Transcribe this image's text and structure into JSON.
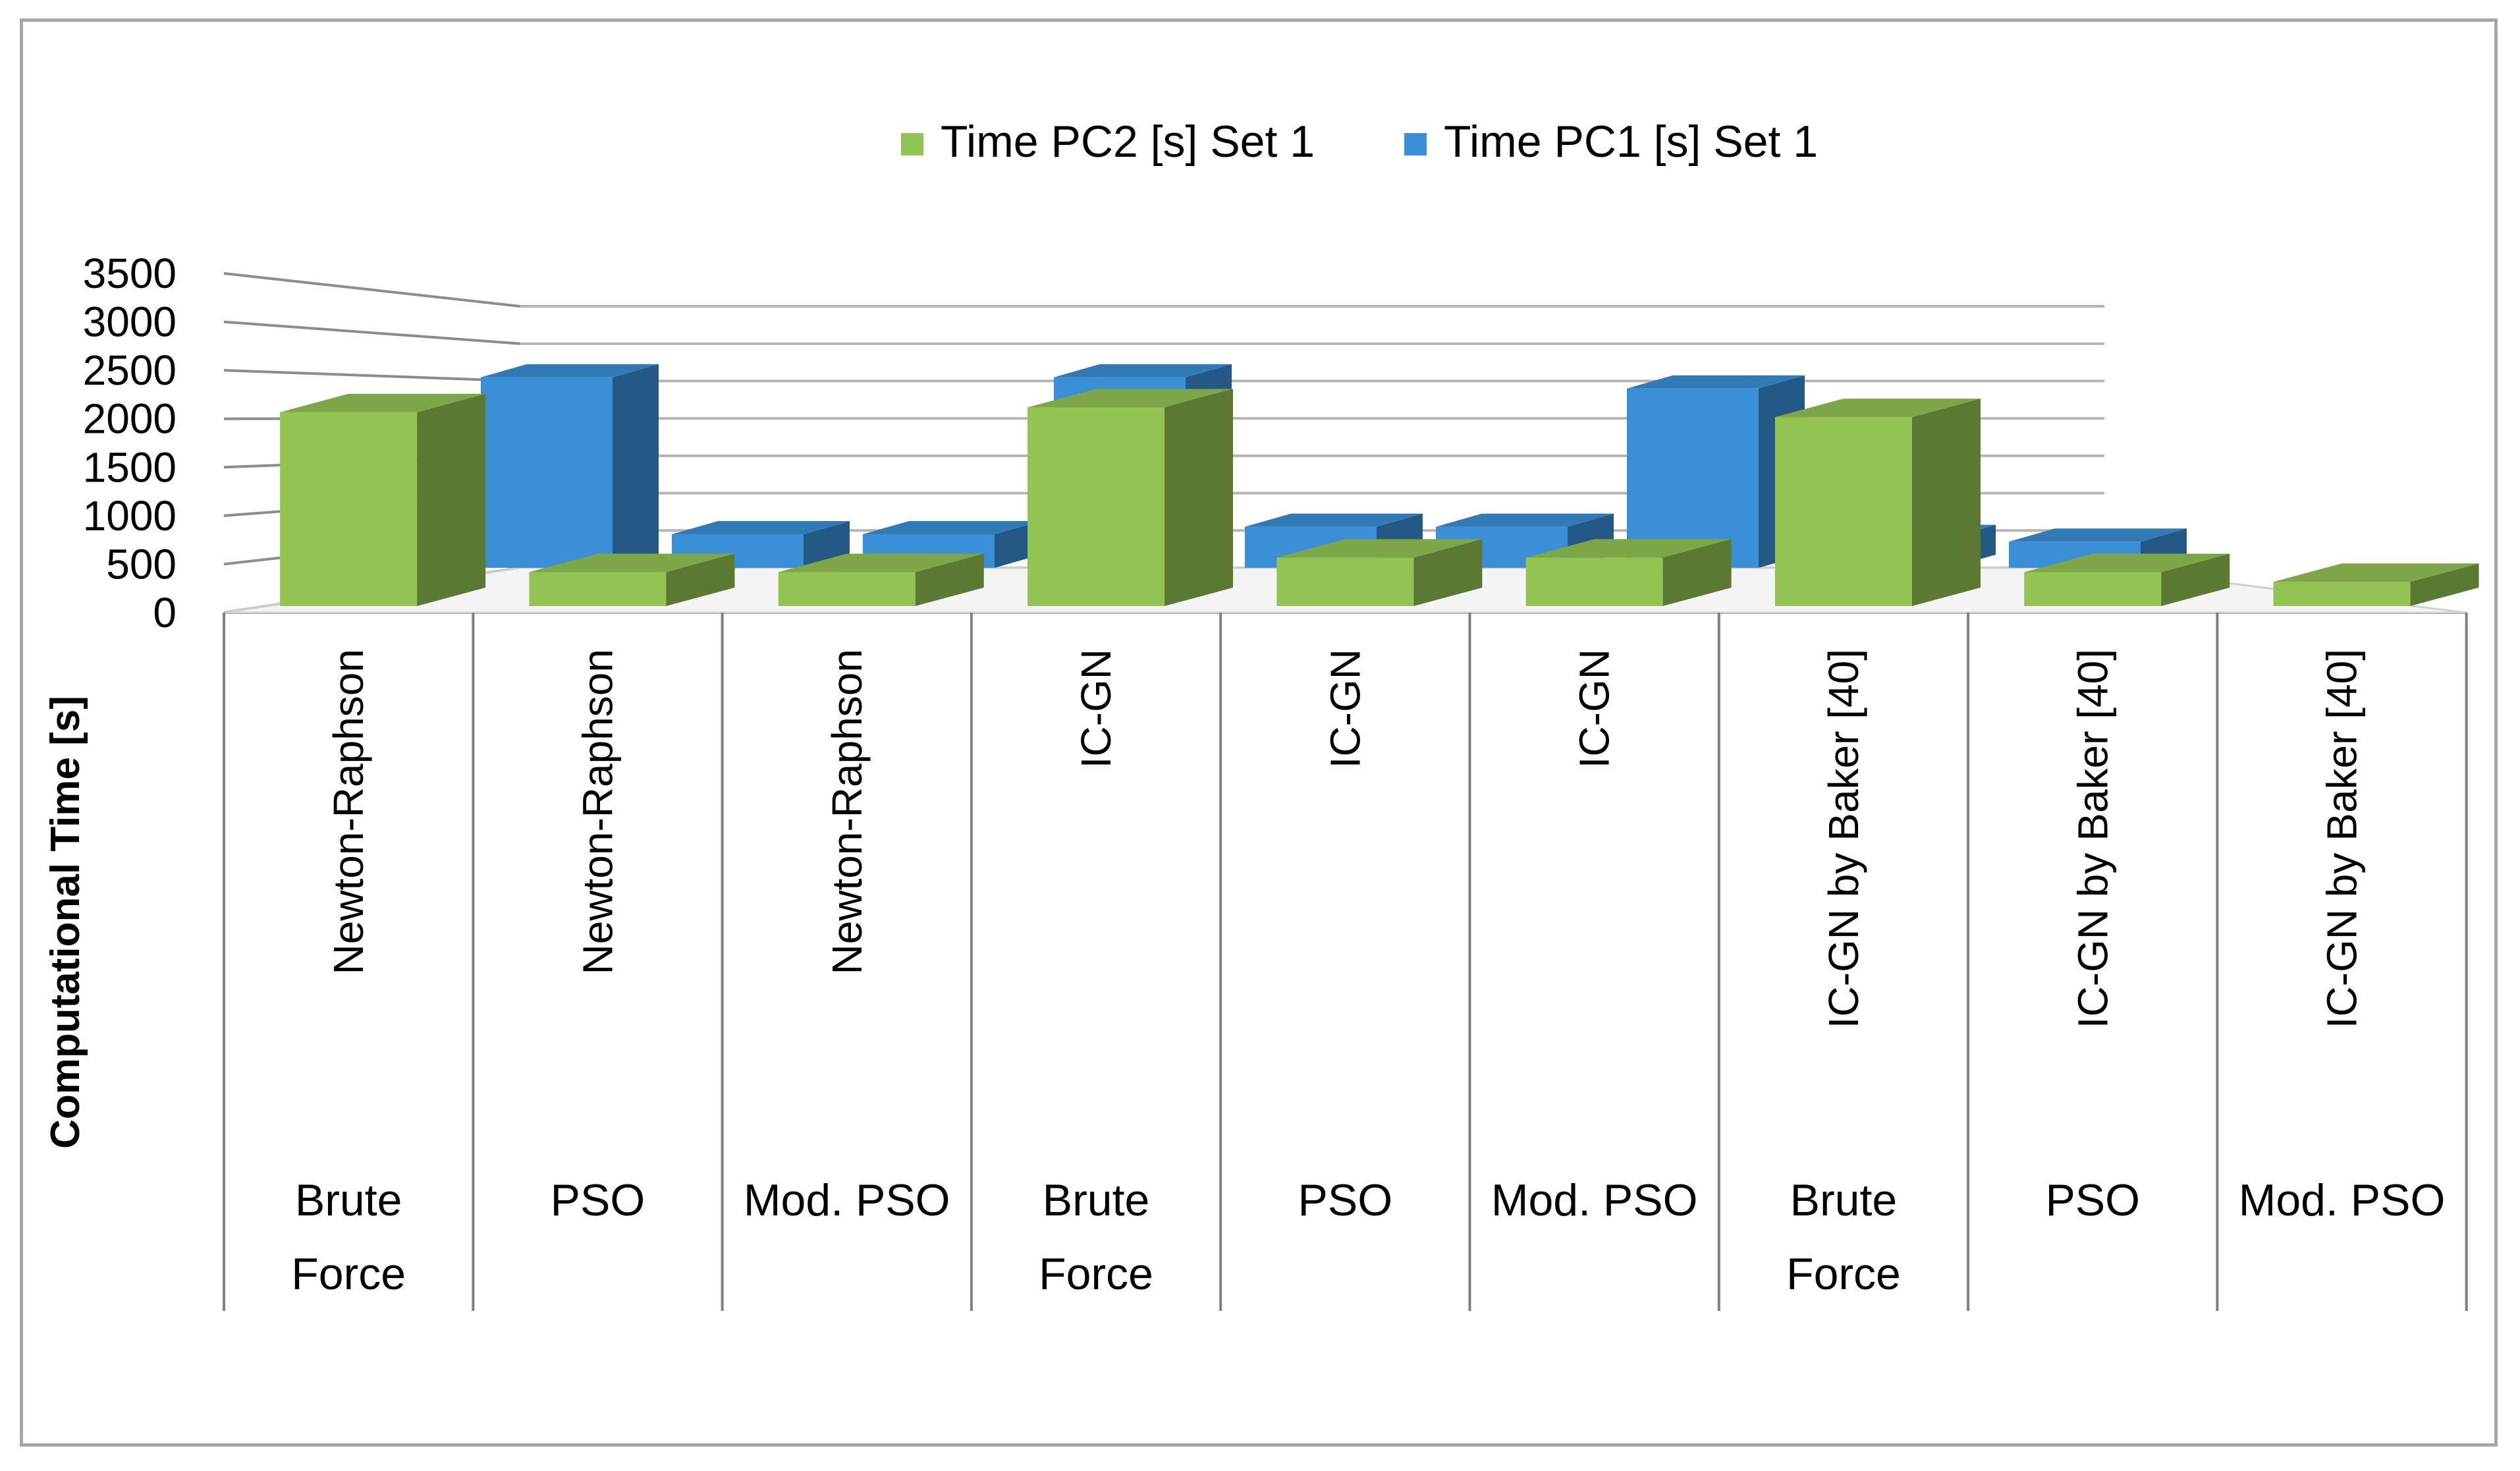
{
  "chart_data": {
    "type": "bar",
    "style": "3d-clustered-column",
    "title": "",
    "ylabel": "Computational Time [s]",
    "xlabel": "",
    "ylim": [
      0,
      3500
    ],
    "yticks": [
      "0",
      "500",
      "1000",
      "1500",
      "2000",
      "2500",
      "3000",
      "3500"
    ],
    "grid": true,
    "legend_position": "top",
    "categories": [
      {
        "method": "Newton-Raphson",
        "init": [
          "Brute",
          "Force"
        ]
      },
      {
        "method": "Newton-Raphson",
        "init": [
          "PSO"
        ]
      },
      {
        "method": "Newton-Raphson",
        "init": [
          "Mod. PSO"
        ]
      },
      {
        "method": "IC-GN",
        "init": [
          "Brute",
          "Force"
        ]
      },
      {
        "method": "IC-GN",
        "init": [
          "PSO"
        ]
      },
      {
        "method": "IC-GN",
        "init": [
          "Mod. PSO"
        ]
      },
      {
        "method": "IC-GN by Baker [40]",
        "init": [
          "Brute",
          "Force"
        ]
      },
      {
        "method": "IC-GN by Baker [40]",
        "init": [
          "PSO"
        ]
      },
      {
        "method": "IC-GN by Baker [40]",
        "init": [
          "Mod. PSO"
        ]
      }
    ],
    "series": [
      {
        "name": "Time PC2 [s] Set 1",
        "color": "#92c353",
        "values": [
          2000,
          350,
          350,
          2050,
          500,
          500,
          1950,
          350,
          250
        ]
      },
      {
        "name": "Time PC1 [s] Set 1",
        "color": "#3a8fd6",
        "values": [
          2550,
          450,
          450,
          2550,
          550,
          550,
          2400,
          400,
          350
        ]
      }
    ]
  }
}
